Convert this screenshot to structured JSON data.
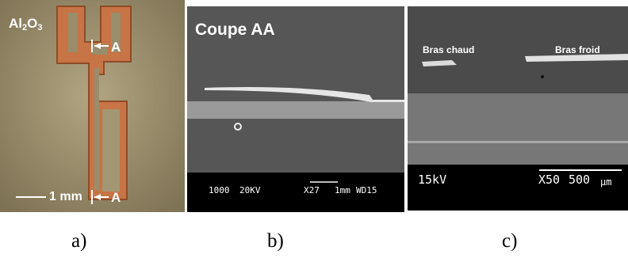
{
  "panels": {
    "a": {
      "caption": "a)",
      "material_prefix": "Al",
      "material_sub1": "2",
      "material_mid": "O",
      "material_sub2": "3",
      "section_label_top": "A",
      "section_label_bottom": "A",
      "scale_text": "1 mm"
    },
    "b": {
      "caption": "b)",
      "title": "Coupe AA",
      "info_bar": {
        "magnification_code": "1000",
        "voltage": "20KV",
        "zoom": "X27",
        "scale": "1mm",
        "working_distance": "WD15"
      }
    },
    "c": {
      "caption": "c)",
      "label_hot": "Bras chaud",
      "label_cold": "Bras froid",
      "info_bar": {
        "voltage": "15kV",
        "zoom": "X50",
        "scale": "500",
        "unit": "µm"
      }
    }
  },
  "colors": {
    "substrate": "#9a8d6b",
    "copper": "#c77446",
    "sem_background": "#565656",
    "sem_band": "#9a9a9a",
    "info_bar": "#000000"
  }
}
